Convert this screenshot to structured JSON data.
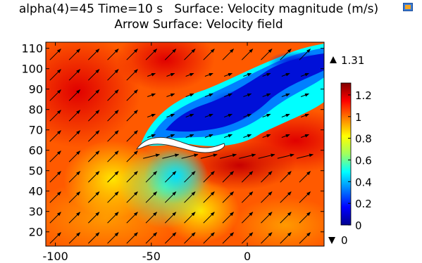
{
  "chart_data": {
    "type": "heatmap",
    "title": "alpha(4)=45 Time=10 s   Surface: Velocity magnitude (m/s)",
    "subtitle": "Arrow Surface: Velocity field",
    "xlabel": "",
    "ylabel": "",
    "xlim": [
      -105,
      40
    ],
    "ylim": [
      13,
      113
    ],
    "x_ticks": [
      -100,
      -50,
      0
    ],
    "y_ticks": [
      20,
      30,
      40,
      50,
      60,
      70,
      80,
      90,
      100,
      110
    ],
    "colorbar": {
      "min": 0,
      "max": 1.31,
      "ticks": [
        "0",
        "0.2",
        "0.4",
        "0.6",
        "0.8",
        "1",
        "1.2"
      ],
      "max_label": "1.31",
      "min_label": "0",
      "colormap": "rainbow"
    },
    "freestream_direction_deg": 45,
    "arrow_grid_step": 10
  },
  "toolbar": {
    "icon": "colormap-icon"
  }
}
